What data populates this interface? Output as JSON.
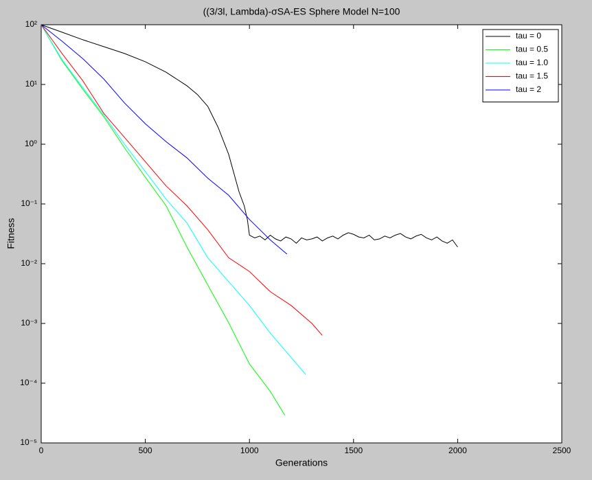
{
  "chart_data": {
    "type": "line",
    "title": "((3/3l, Lambda)-σSA-ES Sphere Model N=100",
    "x_label": "Generations",
    "y_label": "Fitness",
    "xlim": [
      0,
      2500
    ],
    "xticks": [
      0,
      500,
      1000,
      1500,
      2000,
      2500
    ],
    "ylim": [
      1e-05,
      100
    ],
    "yscale": "log",
    "yticks": [
      {
        "value": 1e-05,
        "label": "10⁻⁵"
      },
      {
        "value": 0.0001,
        "label": "10⁻⁴"
      },
      {
        "value": 0.001,
        "label": "10⁻³"
      },
      {
        "value": 0.01,
        "label": "10⁻²"
      },
      {
        "value": 0.1,
        "label": "10⁻¹"
      },
      {
        "value": 1,
        "label": "10⁰"
      },
      {
        "value": 10,
        "label": "10¹"
      },
      {
        "value": 100,
        "label": "10²"
      }
    ],
    "legend": "upper right",
    "series": [
      {
        "name": "tau = 0",
        "color": "#000000",
        "x": [
          0,
          100,
          200,
          300,
          400,
          500,
          600,
          700,
          750,
          800,
          850,
          900,
          950,
          975,
          990,
          1000,
          1025,
          1050,
          1075,
          1100,
          1125,
          1150,
          1175,
          1200,
          1225,
          1250,
          1275,
          1300,
          1325,
          1350,
          1375,
          1400,
          1425,
          1450,
          1475,
          1500,
          1525,
          1550,
          1575,
          1600,
          1625,
          1650,
          1675,
          1700,
          1725,
          1750,
          1775,
          1800,
          1825,
          1850,
          1875,
          1900,
          1925,
          1950,
          1975,
          2000
        ],
        "values": [
          100,
          75,
          56,
          43,
          33,
          24,
          16,
          9.5,
          6.8,
          4.3,
          1.9,
          0.68,
          0.16,
          0.093,
          0.055,
          0.03,
          0.027,
          0.029,
          0.025,
          0.03,
          0.026,
          0.024,
          0.028,
          0.026,
          0.022,
          0.027,
          0.025,
          0.026,
          0.028,
          0.024,
          0.027,
          0.029,
          0.026,
          0.03,
          0.033,
          0.031,
          0.028,
          0.027,
          0.03,
          0.025,
          0.026,
          0.029,
          0.027,
          0.03,
          0.032,
          0.028,
          0.026,
          0.029,
          0.031,
          0.027,
          0.025,
          0.028,
          0.024,
          0.022,
          0.025,
          0.019
        ]
      },
      {
        "name": "tau = 0.5",
        "color": "#00ff00",
        "x": [
          0,
          100,
          200,
          300,
          400,
          500,
          600,
          700,
          800,
          900,
          1000,
          1100,
          1170
        ],
        "values": [
          100,
          25,
          8.3,
          2.9,
          0.87,
          0.28,
          0.093,
          0.019,
          0.0044,
          0.00103,
          0.00021,
          7.3e-05,
          2.9e-05
        ]
      },
      {
        "name": "tau = 1.0",
        "color": "#00ffff",
        "x": [
          0,
          100,
          200,
          300,
          400,
          500,
          600,
          700,
          800,
          900,
          1000,
          1100,
          1200,
          1270
        ],
        "values": [
          100,
          26,
          8.8,
          3.1,
          1.0,
          0.35,
          0.12,
          0.048,
          0.0126,
          0.005,
          0.002,
          0.00069,
          0.00027,
          0.00014
        ]
      },
      {
        "name": "tau = 1.5",
        "color": "#ff0000",
        "x": [
          0,
          100,
          200,
          300,
          400,
          500,
          600,
          700,
          800,
          900,
          1000,
          1100,
          1200,
          1300,
          1350
        ],
        "values": [
          100,
          33,
          11.5,
          3.3,
          1.3,
          0.51,
          0.2,
          0.093,
          0.037,
          0.0126,
          0.0074,
          0.0034,
          0.002,
          0.001,
          0.00063
        ]
      },
      {
        "name": "tau = 2",
        "color": "#0000ff",
        "x": [
          0,
          100,
          200,
          300,
          400,
          500,
          600,
          700,
          800,
          900,
          1000,
          1100,
          1180
        ],
        "values": [
          100,
          53,
          27,
          12.4,
          4.9,
          2.2,
          1.1,
          0.59,
          0.27,
          0.14,
          0.055,
          0.025,
          0.0145
        ]
      }
    ]
  }
}
